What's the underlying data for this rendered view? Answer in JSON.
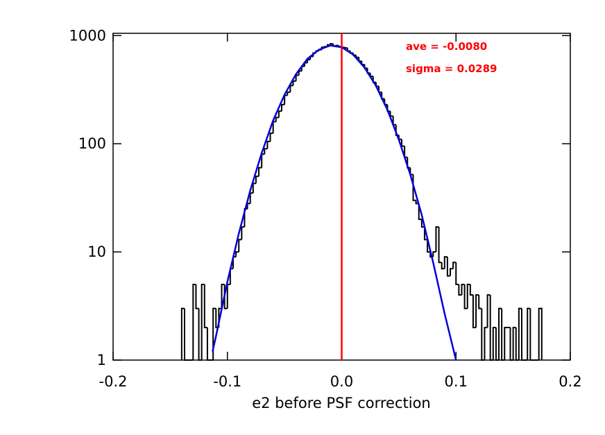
{
  "chart_data": {
    "type": "histogram",
    "xlabel": "e2 before PSF correction",
    "annotations": [
      "ave = -0.0080",
      "sigma =  0.0289"
    ],
    "annotation_color": "#ff0000",
    "xlim": [
      -0.2,
      0.2
    ],
    "xticks": [
      -0.2,
      -0.1,
      {
        "value": 0,
        "label": "0.0"
      },
      0.1,
      0.2
    ],
    "ylim": [
      1,
      1050
    ],
    "yticks": [
      1,
      10,
      100,
      1000
    ],
    "ylog": true,
    "color": "#000000",
    "bins": [
      -0.14,
      -0.1375,
      -0.135,
      -0.1325,
      -0.13,
      -0.1275,
      -0.125,
      -0.1225,
      -0.12,
      -0.1175,
      -0.115,
      -0.1125,
      -0.11,
      -0.1075,
      -0.105,
      -0.1025,
      -0.1,
      -0.0975,
      -0.095,
      -0.0925,
      -0.09,
      -0.0875,
      -0.085,
      -0.0825,
      -0.08,
      -0.0775,
      -0.075,
      -0.0725,
      -0.07,
      -0.0675,
      -0.065,
      -0.0625,
      -0.06,
      -0.0575,
      -0.055,
      -0.0525,
      -0.05,
      -0.0475,
      -0.045,
      -0.0425,
      -0.04,
      -0.0375,
      -0.035,
      -0.0325,
      -0.03,
      -0.0275,
      -0.025,
      -0.0225,
      -0.02,
      -0.0175,
      -0.015,
      -0.0125,
      -0.01,
      -0.0075,
      -0.005,
      -0.0025,
      0,
      0.0025,
      0.005,
      0.0075,
      0.01,
      0.0125,
      0.015,
      0.0175,
      0.02,
      0.0225,
      0.025,
      0.0275,
      0.03,
      0.0325,
      0.035,
      0.0375,
      0.04,
      0.0425,
      0.045,
      0.0475,
      0.05,
      0.0525,
      0.055,
      0.0575,
      0.06,
      0.0625,
      0.065,
      0.0675,
      0.07,
      0.0725,
      0.075,
      0.0775,
      0.08,
      0.0825,
      0.085,
      0.0875,
      0.09,
      0.0925,
      0.095,
      0.0975,
      0.1,
      0.1025,
      0.105,
      0.1075,
      0.11,
      0.1125,
      0.115,
      0.1175,
      0.12,
      0.1225,
      0.125,
      0.1275,
      0.13,
      0.1325,
      0.135,
      0.1375,
      0.14,
      0.1425,
      0.145,
      0.1475,
      0.15,
      0.1525,
      0.155,
      0.1575,
      0.16,
      0.1625,
      0.165,
      0.1675,
      0.17,
      0.1725,
      0.175
    ],
    "values": [
      3,
      0,
      0,
      0,
      5,
      3,
      0,
      5,
      2,
      0,
      1,
      3,
      2,
      3,
      5,
      3,
      5,
      7,
      9,
      10,
      13,
      17,
      25,
      28,
      35,
      43,
      50,
      60,
      80,
      90,
      105,
      125,
      160,
      175,
      200,
      230,
      280,
      300,
      345,
      380,
      430,
      470,
      520,
      560,
      600,
      640,
      690,
      720,
      740,
      780,
      790,
      820,
      840,
      800,
      810,
      790,
      780,
      770,
      720,
      690,
      660,
      630,
      580,
      540,
      500,
      450,
      420,
      370,
      340,
      300,
      260,
      230,
      200,
      180,
      150,
      120,
      110,
      95,
      75,
      60,
      52,
      30,
      28,
      20,
      17,
      13,
      10,
      9,
      10,
      17,
      8,
      7,
      9,
      6,
      7,
      8,
      5,
      4,
      5,
      3,
      5,
      4,
      2,
      4,
      3,
      1,
      2,
      4,
      1,
      2,
      0,
      3,
      1,
      2,
      2,
      0,
      2,
      1,
      3,
      1,
      0,
      3,
      0,
      1,
      1,
      3
    ],
    "fit": {
      "color": "#0000dd",
      "x": [
        -0.113,
        -0.11,
        -0.1,
        -0.09,
        -0.08,
        -0.07,
        -0.06,
        -0.05,
        -0.04,
        -0.03,
        -0.02,
        -0.01,
        0,
        0.01,
        0.02,
        0.03,
        0.04,
        0.05,
        0.06,
        0.07,
        0.08,
        0.09,
        0.1
      ],
      "values": [
        1.2,
        1.66,
        5.3,
        14.8,
        37,
        82,
        164,
        284,
        440,
        610,
        740,
        810,
        780,
        668,
        506,
        343,
        206,
        109,
        52,
        22,
        8,
        2.7,
        1.0
      ]
    },
    "vline": {
      "x": 0,
      "color": "#ff0000"
    }
  }
}
